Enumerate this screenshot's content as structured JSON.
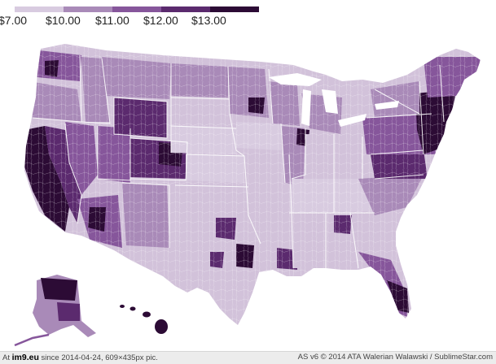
{
  "legend": {
    "labels": [
      "$7.00",
      "$10.00",
      "$11.00",
      "$12.00",
      "$13.00"
    ],
    "colors": [
      "#d8cbe0",
      "#a98ab8",
      "#86569b",
      "#5b2a6e",
      "#2c0b35"
    ]
  },
  "map": {
    "fill_default": "#d2c2da",
    "state_border": "#ffffff"
  },
  "footer": {
    "prefix": "At",
    "site": "im9.eu",
    "since": "since 2014-04-24, 609×435px pic.",
    "credit": "AS v6 © 2014 ATA Walerian Walawski / SublimeStar.com"
  }
}
